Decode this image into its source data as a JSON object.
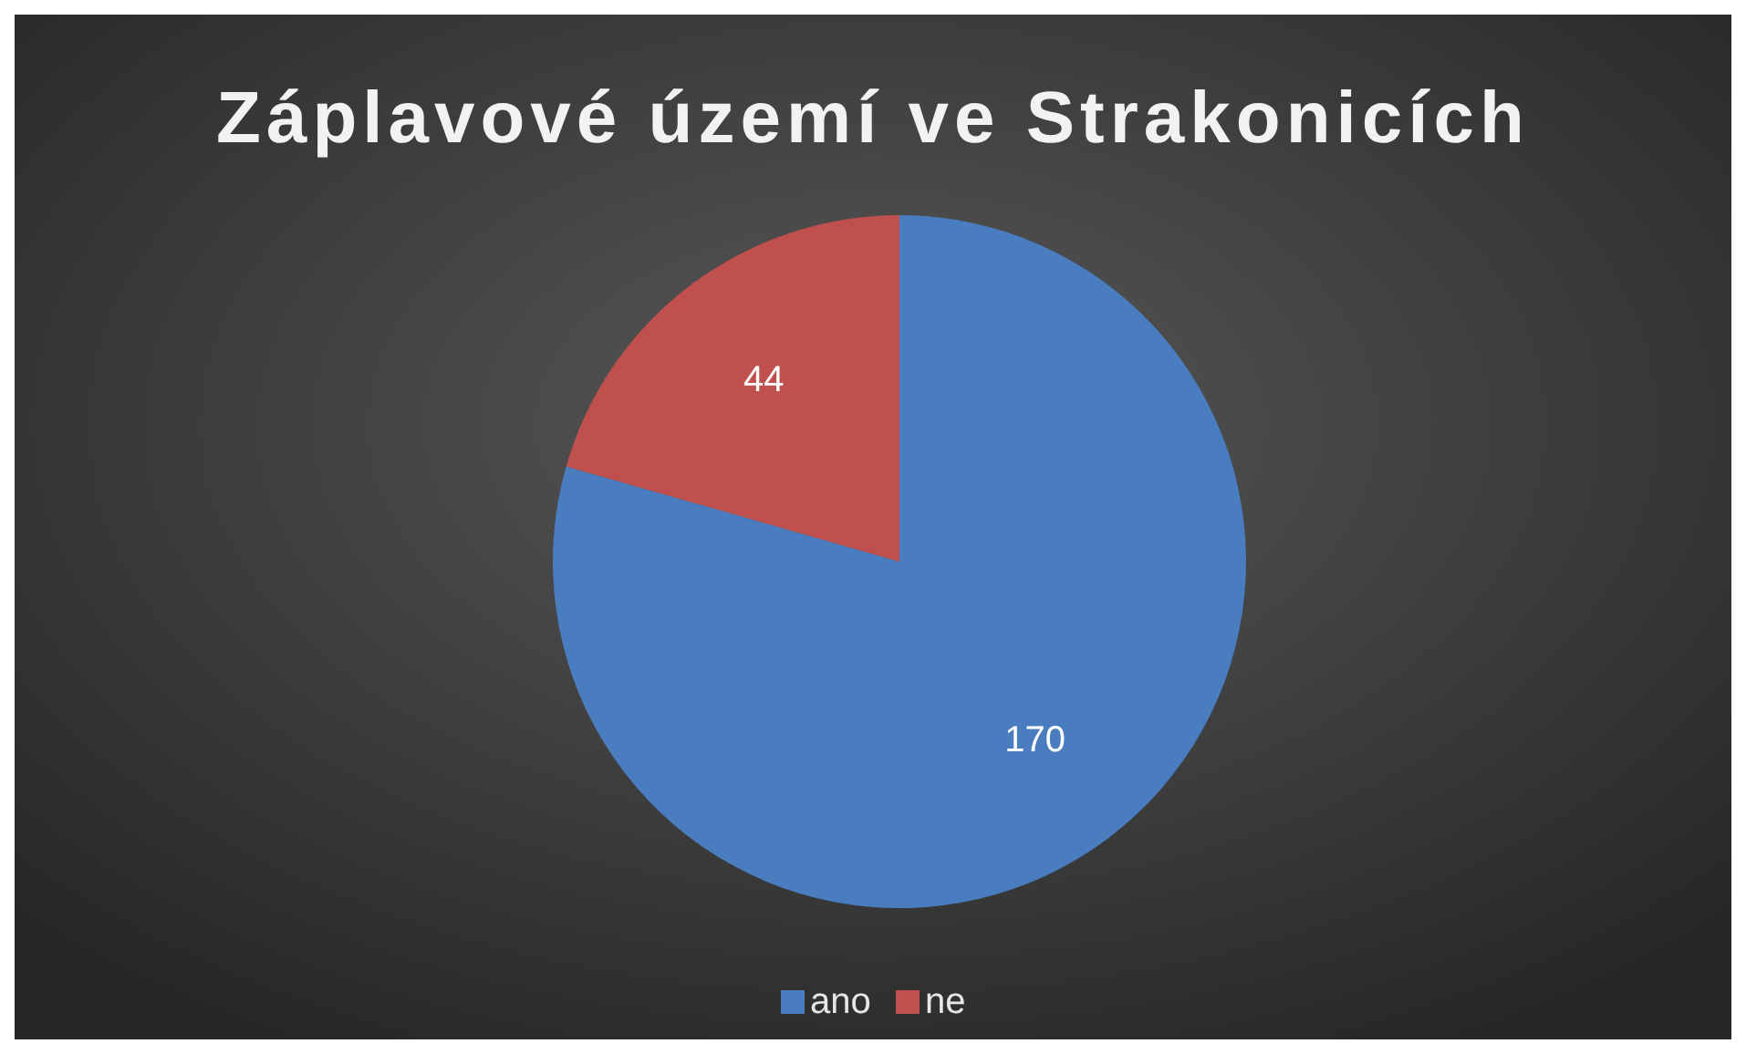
{
  "chart_data": {
    "type": "pie",
    "title": "Záplavové území ve Strakonicích",
    "categories": [
      "ano",
      "ne"
    ],
    "values": [
      170,
      44
    ],
    "colors": [
      "#4a7cc0",
      "#c0504d"
    ],
    "data_labels": true,
    "legend": "bottom"
  }
}
